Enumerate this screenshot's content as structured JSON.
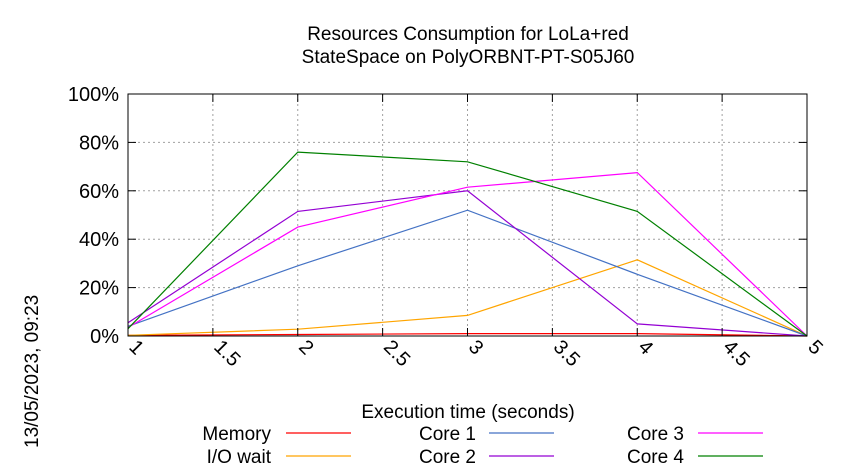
{
  "timestamp": "13/05/2023, 09:23",
  "chart_data": {
    "type": "line",
    "title": [
      "Resources Consumption for LoLa+red",
      "StateSpace on PolyORBNT-PT-S05J60"
    ],
    "xlabel": "Execution time (seconds)",
    "ylabel": "",
    "xlim": [
      1,
      5
    ],
    "ylim": [
      0,
      100
    ],
    "x_ticks": [
      "1",
      "1.5",
      "2",
      "2.5",
      "3",
      "3.5",
      "4",
      "4.5",
      "5"
    ],
    "x_tick_values": [
      1,
      1.5,
      2,
      2.5,
      3,
      3.5,
      4,
      4.5,
      5
    ],
    "y_ticks": [
      "0%",
      "20%",
      "40%",
      "60%",
      "80%",
      "100%"
    ],
    "y_tick_values": [
      0,
      20,
      40,
      60,
      80,
      100
    ],
    "grid": true,
    "legend_position": "bottom",
    "x": [
      1,
      2,
      3,
      4,
      5
    ],
    "series": [
      {
        "name": "Memory",
        "color": "#ff0000",
        "values": [
          0.3,
          0.6,
          1.0,
          1.0,
          0
        ]
      },
      {
        "name": "I/O wait",
        "color": "#ffa500",
        "values": [
          0.3,
          2.8,
          8.5,
          31.5,
          0
        ]
      },
      {
        "name": "Core 1",
        "color": "#4472c4",
        "values": [
          4,
          29,
          52,
          25.5,
          0
        ]
      },
      {
        "name": "Core 2",
        "color": "#9400d3",
        "values": [
          5.5,
          51.5,
          60,
          5,
          0
        ]
      },
      {
        "name": "Core 3",
        "color": "#ff00ff",
        "values": [
          3.5,
          45,
          61.5,
          67.5,
          0
        ]
      },
      {
        "name": "Core 4",
        "color": "#008000",
        "values": [
          3,
          76,
          72,
          51.5,
          0
        ]
      }
    ]
  }
}
